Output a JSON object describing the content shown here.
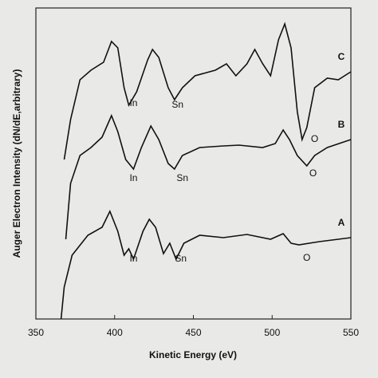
{
  "chart_data": {
    "type": "line",
    "x_label": "Kinetic Energy (eV)",
    "y_label": "Auger Electron Intensity (dN/dE,arbitrary)",
    "xlim": [
      350,
      550
    ],
    "xticks": [
      350,
      400,
      450,
      500,
      550
    ],
    "ylim": [
      0,
      390
    ],
    "series": [
      {
        "name": "A",
        "color": "#111111",
        "x": [
          366,
          368,
          373,
          383,
          392,
          397,
          402,
          406,
          409,
          412,
          418,
          422,
          426,
          431,
          435,
          439,
          444,
          454,
          469,
          484,
          499,
          507,
          512,
          517,
          530,
          550
        ],
        "values": [
          0,
          40,
          80,
          105,
          115,
          135,
          110,
          80,
          88,
          75,
          110,
          125,
          115,
          82,
          95,
          75,
          95,
          105,
          102,
          106,
          100,
          107,
          95,
          93,
          97,
          102
        ]
      },
      {
        "name": "B",
        "color": "#111111",
        "x": [
          369,
          372,
          378,
          385,
          392,
          398,
          402,
          407,
          412,
          417,
          423,
          428,
          434,
          438,
          443,
          454,
          469,
          479,
          494,
          502,
          507,
          511,
          516,
          522,
          527,
          535,
          550
        ],
        "values": [
          100,
          170,
          205,
          215,
          228,
          255,
          235,
          200,
          188,
          215,
          242,
          225,
          195,
          188,
          205,
          215,
          217,
          218,
          215,
          220,
          237,
          225,
          205,
          192,
          205,
          215,
          225
        ]
      },
      {
        "name": "C",
        "color": "#111111",
        "x": [
          368,
          372,
          378,
          385,
          393,
          398,
          402,
          406,
          409,
          414,
          421,
          424,
          428,
          434,
          438,
          443,
          451,
          464,
          471,
          477,
          484,
          489,
          494,
          499,
          504,
          508,
          512,
          516,
          519,
          522,
          527,
          535,
          542,
          550
        ],
        "values": [
          200,
          250,
          300,
          312,
          322,
          348,
          340,
          290,
          268,
          285,
          325,
          338,
          328,
          290,
          275,
          290,
          305,
          312,
          320,
          305,
          320,
          338,
          320,
          305,
          350,
          370,
          340,
          260,
          225,
          240,
          290,
          302,
          300,
          310
        ]
      }
    ],
    "annotations": [
      {
        "text": "In",
        "x": 412,
        "y": 270
      },
      {
        "text": "Sn",
        "x": 440,
        "y": 268
      },
      {
        "text": "O",
        "x": 527,
        "y": 225
      },
      {
        "text": "In",
        "x": 412,
        "y": 176
      },
      {
        "text": "Sn",
        "x": 443,
        "y": 176
      },
      {
        "text": "O",
        "x": 526,
        "y": 182
      },
      {
        "text": "In",
        "x": 412,
        "y": 75
      },
      {
        "text": "Sn",
        "x": 442,
        "y": 75
      },
      {
        "text": "O",
        "x": 522,
        "y": 76
      }
    ]
  }
}
